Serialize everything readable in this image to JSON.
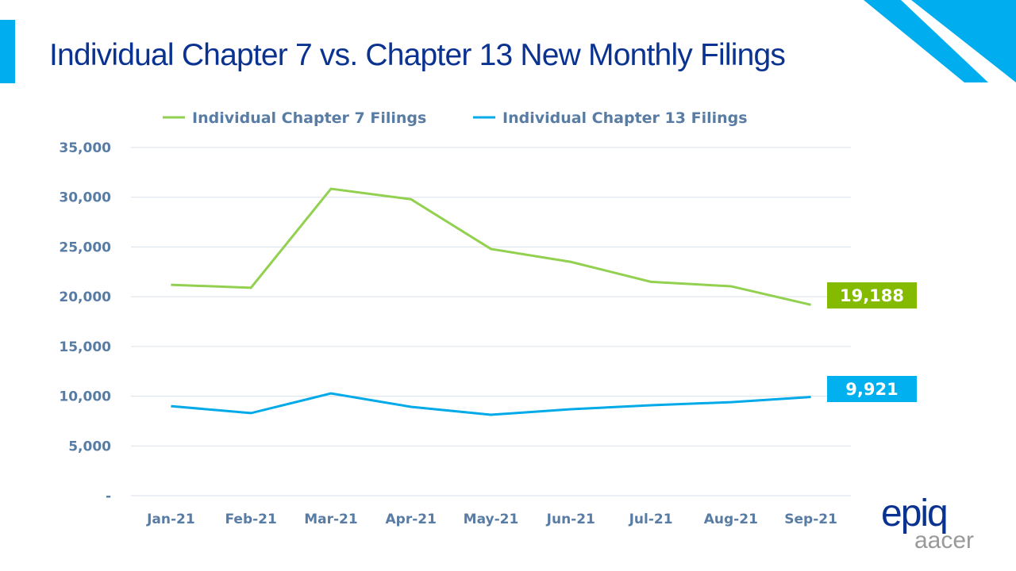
{
  "title": "Individual Chapter 7 vs. Chapter 13 New Monthly Filings",
  "logo": {
    "brand": "epiq",
    "sub": "aacer"
  },
  "chart_data": {
    "type": "line",
    "title": "Individual Chapter 7 vs. Chapter 13 New Monthly Filings",
    "categories": [
      "Jan-21",
      "Feb-21",
      "Mar-21",
      "Apr-21",
      "May-21",
      "Jun-21",
      "Jul-21",
      "Aug-21",
      "Sep-21"
    ],
    "series": [
      {
        "name": "Individual Chapter 7 Filings",
        "color": "#92d050",
        "values": [
          21200,
          20900,
          30850,
          29800,
          24800,
          23500,
          21500,
          21050,
          19188
        ]
      },
      {
        "name": "Individual Chapter 13 Filings",
        "color": "#00a9e8",
        "values": [
          9000,
          8300,
          10280,
          8930,
          8130,
          8690,
          9090,
          9400,
          9921
        ]
      }
    ],
    "end_labels": [
      {
        "text": "19,188",
        "color": "#84bb00"
      },
      {
        "text": "9,921",
        "color": "#00b0ef"
      }
    ],
    "yticks": [
      "-",
      "5,000",
      "10,000",
      "15,000",
      "20,000",
      "25,000",
      "30,000",
      "35,000"
    ],
    "ylim": [
      0,
      35000
    ],
    "grid": true,
    "legend": "top"
  }
}
